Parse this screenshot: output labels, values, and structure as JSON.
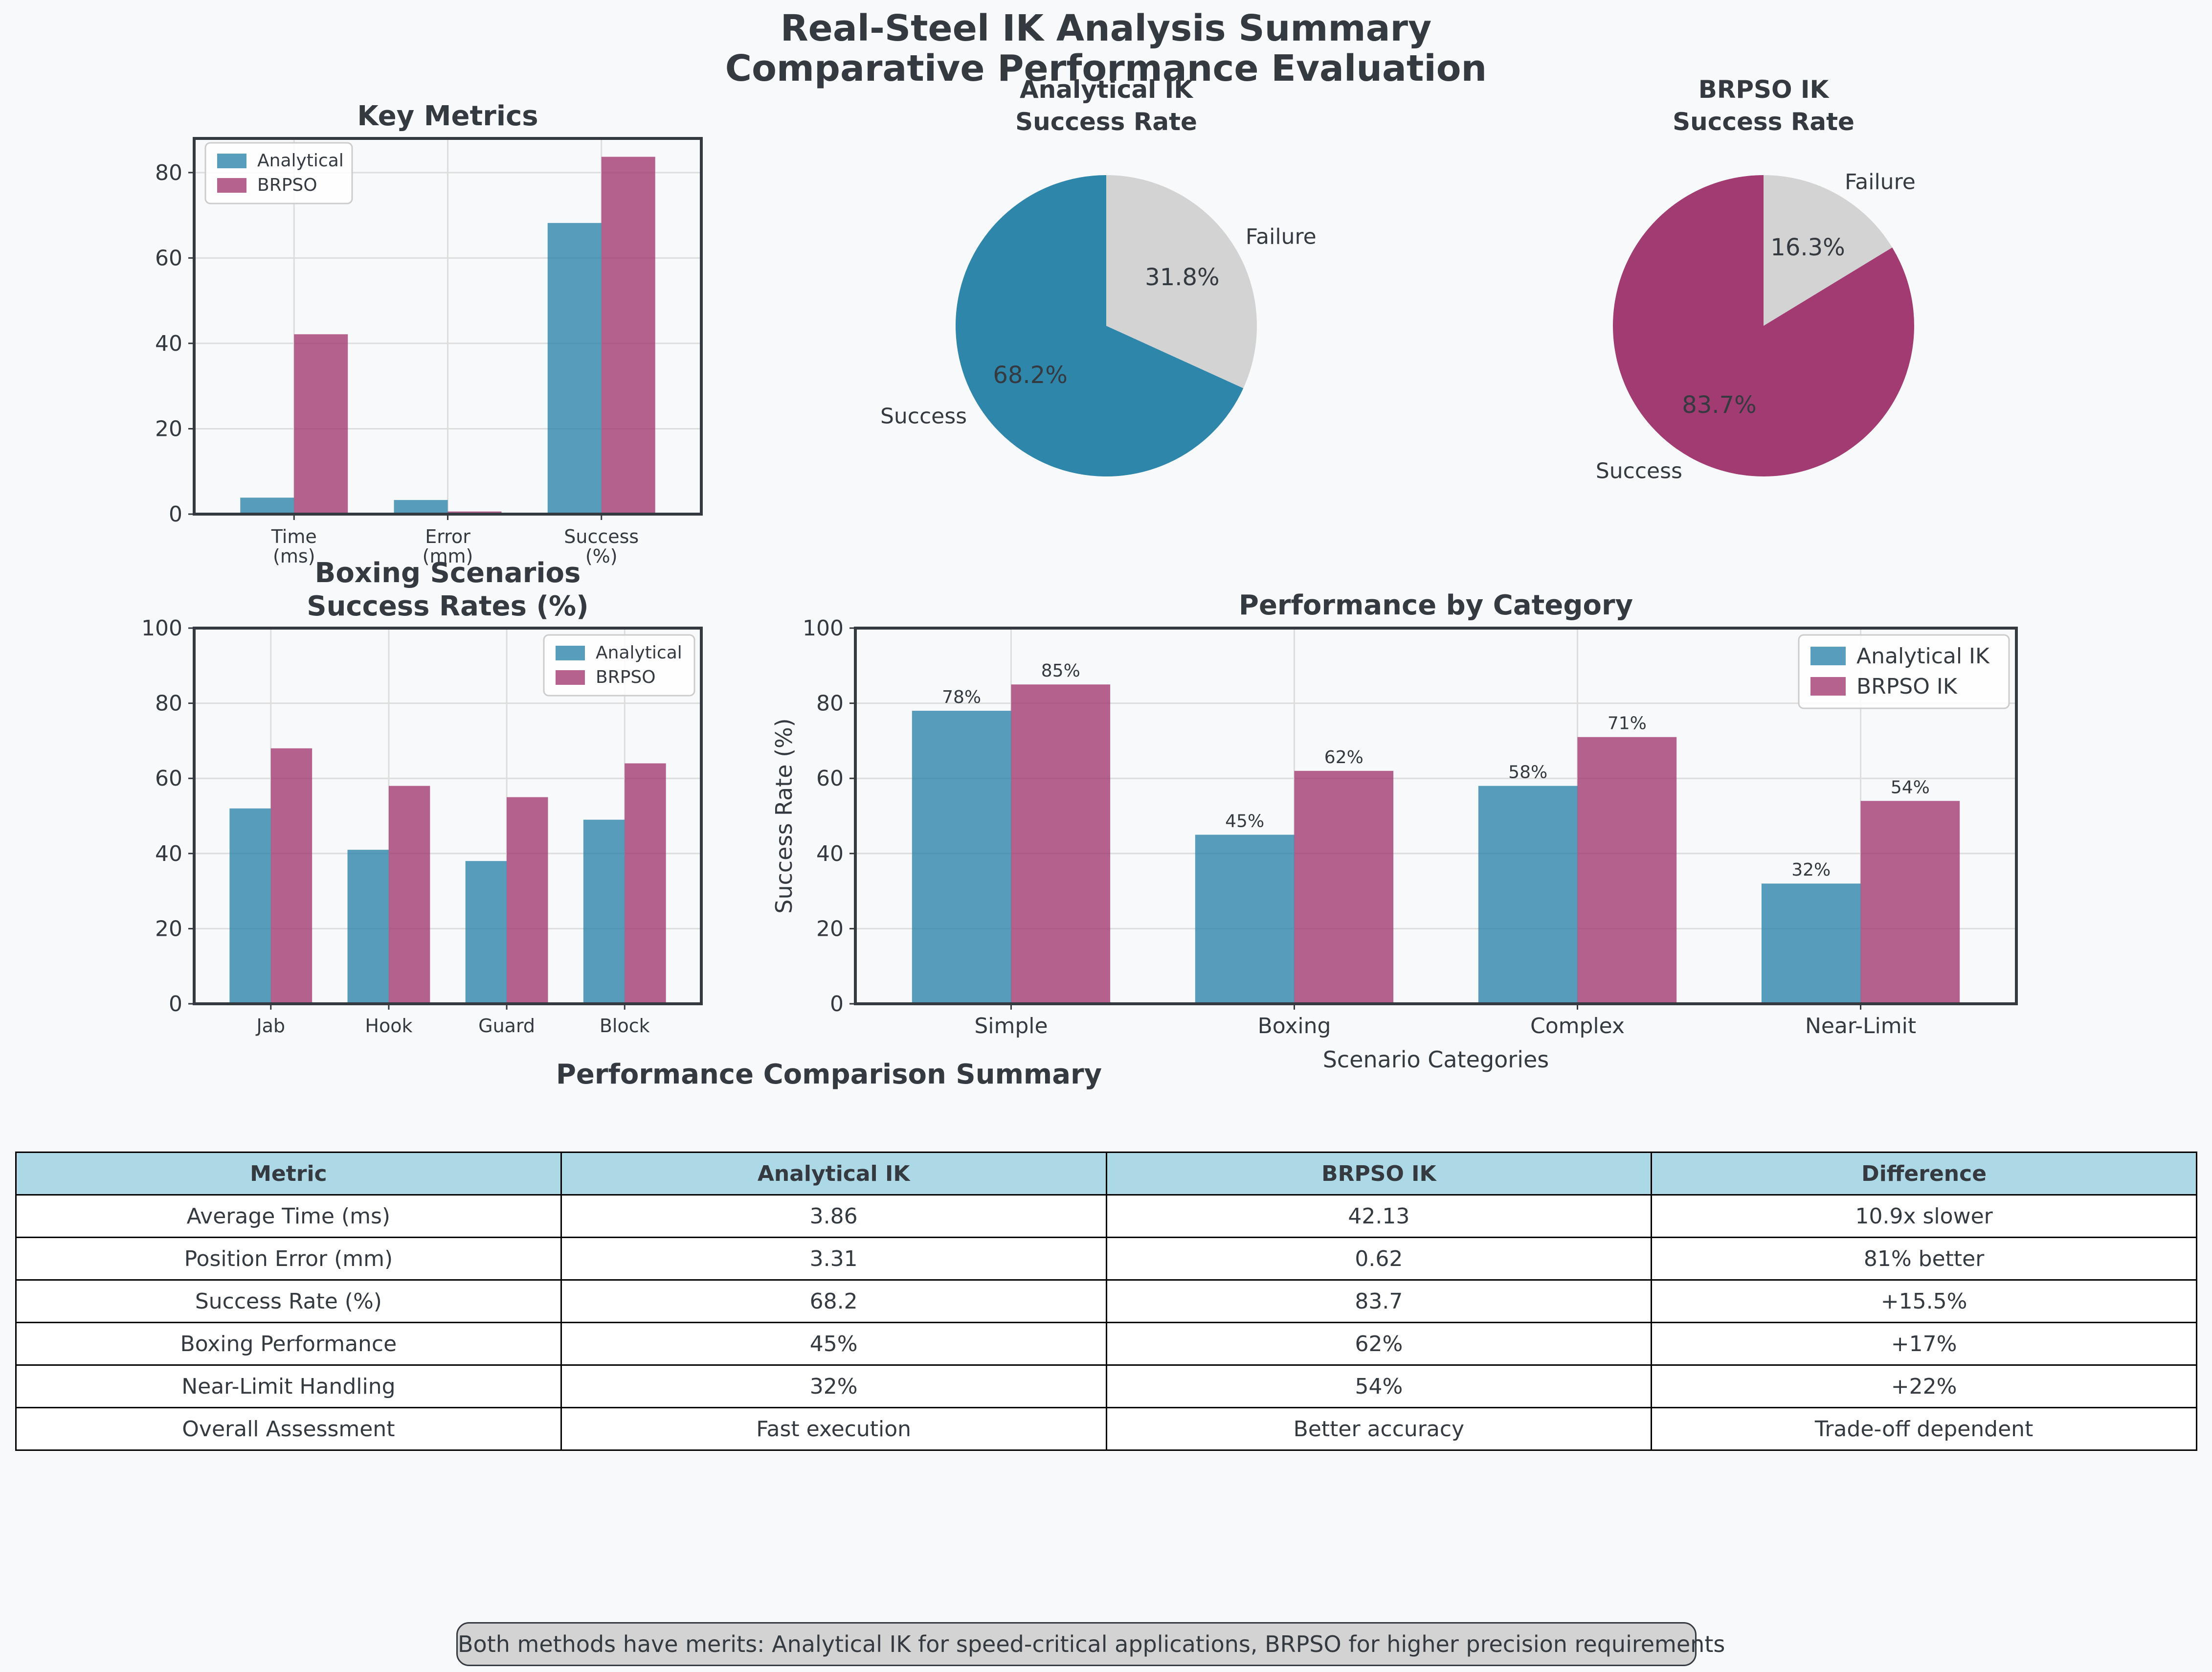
{
  "suptitle": [
    "Real-Steel IK Analysis Summary",
    "Comparative Performance Evaluation"
  ],
  "colors": {
    "analytical": "#2e86ab",
    "brpso": "#a23b72",
    "failure": "#d3d3d3",
    "grid": "#dddddd",
    "text": "#343a40"
  },
  "chart_data": [
    {
      "id": "key-metrics",
      "type": "bar",
      "title": "Key Metrics",
      "categories": [
        [
          "Time",
          "(ms)"
        ],
        [
          "Error",
          "(mm)"
        ],
        [
          "Success",
          "(%)"
        ]
      ],
      "series": [
        {
          "name": "Analytical",
          "values": [
            3.86,
            3.31,
            68.2
          ]
        },
        {
          "name": "BRPSO",
          "values": [
            42.13,
            0.62,
            83.7
          ]
        }
      ],
      "ylim": [
        0,
        88
      ],
      "yticks": [
        0,
        20,
        40,
        60,
        80
      ],
      "grid": true,
      "legend": "top-left"
    },
    {
      "id": "analytical-pie",
      "type": "pie",
      "title": [
        "Analytical IK",
        "Success Rate"
      ],
      "labels": [
        "Success",
        "Failure"
      ],
      "values": [
        68.2,
        31.8
      ],
      "autopct": [
        "68.2%",
        "31.8%"
      ]
    },
    {
      "id": "brpso-pie",
      "type": "pie",
      "title": [
        "BRPSO IK",
        "Success Rate"
      ],
      "labels": [
        "Success",
        "Failure"
      ],
      "values": [
        83.7,
        16.3
      ],
      "autopct": [
        "83.7%",
        "16.3%"
      ]
    },
    {
      "id": "boxing",
      "type": "bar",
      "title": [
        "Boxing Scenarios",
        "Success Rates (%)"
      ],
      "categories": [
        "Jab",
        "Hook",
        "Guard",
        "Block"
      ],
      "series": [
        {
          "name": "Analytical",
          "values": [
            52,
            41,
            38,
            49
          ]
        },
        {
          "name": "BRPSO",
          "values": [
            68,
            58,
            55,
            64
          ]
        }
      ],
      "ylim": [
        0,
        100
      ],
      "yticks": [
        0,
        20,
        40,
        60,
        80,
        100
      ],
      "grid": true,
      "legend": "top-right"
    },
    {
      "id": "category",
      "type": "bar",
      "title": "Performance by Category",
      "categories": [
        "Simple",
        "Boxing",
        "Complex",
        "Near-Limit"
      ],
      "series": [
        {
          "name": "Analytical IK",
          "values": [
            78,
            45,
            58,
            32
          ],
          "labels": [
            "78%",
            "45%",
            "58%",
            "32%"
          ]
        },
        {
          "name": "BRPSO IK",
          "values": [
            85,
            62,
            71,
            54
          ],
          "labels": [
            "85%",
            "62%",
            "71%",
            "54%"
          ]
        }
      ],
      "xlabel": "Scenario Categories",
      "ylabel": "Success Rate (%)",
      "ylim": [
        0,
        100
      ],
      "yticks": [
        0,
        20,
        40,
        60,
        80,
        100
      ],
      "grid": true,
      "legend": "top-right"
    }
  ],
  "table": {
    "title": "Performance Comparison Summary",
    "headers": [
      "Metric",
      "Analytical IK",
      "BRPSO IK",
      "Difference"
    ],
    "rows": [
      [
        "Average Time (ms)",
        "3.86",
        "42.13",
        "10.9x slower"
      ],
      [
        "Position Error (mm)",
        "3.31",
        "0.62",
        "81% better"
      ],
      [
        "Success Rate (%)",
        "68.2",
        "83.7",
        "+15.5%"
      ],
      [
        "Boxing Performance",
        "45%",
        "62%",
        "+17%"
      ],
      [
        "Near-Limit Handling",
        "32%",
        "54%",
        "+22%"
      ],
      [
        "Overall Assessment",
        "Fast execution",
        "Better accuracy",
        "Trade-off dependent"
      ]
    ]
  },
  "footnote": "Both methods have merits: Analytical IK for speed-critical applications, BRPSO for higher precision requirements"
}
